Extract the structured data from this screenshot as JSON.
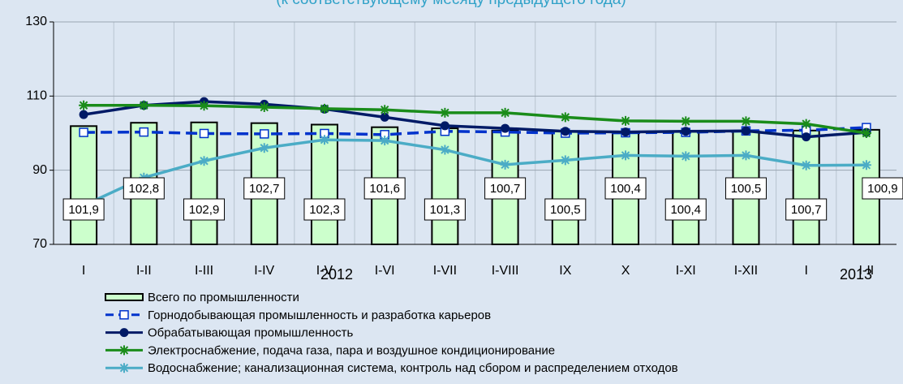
{
  "chart_data": {
    "type": "bar_line",
    "subtitle": "(к соответствующему месяцу предыдущего года)",
    "categories": [
      "I",
      "I-II",
      "I-III",
      "I-IV",
      "I-V",
      "I-VI",
      "I-VII",
      "I-VIII",
      "IX",
      "X",
      "I-XI",
      "I-XII",
      "I",
      "I-II"
    ],
    "group_labels": [
      "2012",
      "2013"
    ],
    "ylim": [
      70,
      130
    ],
    "yticks": [
      70,
      90,
      110,
      130
    ],
    "grid": true,
    "series": [
      {
        "name": "Всего по промышленности",
        "type": "bar",
        "color": "#ccffcc",
        "values": [
          101.9,
          102.8,
          102.9,
          102.7,
          102.3,
          101.6,
          101.3,
          100.7,
          100.5,
          100.4,
          100.4,
          100.5,
          100.7,
          100.9
        ],
        "value_labels": [
          "101,9",
          "102,8",
          "102,9",
          "102,7",
          "102,3",
          "101,6",
          "101,3",
          "100,7",
          "100,5",
          "100,4",
          "100,4",
          "100,5",
          "100,7",
          "100,9"
        ]
      },
      {
        "name": "Горнодобывающая промышленность и разработка карьеров",
        "type": "line",
        "color": "#0033cc",
        "marker": "square",
        "dashed": true,
        "values": [
          100.2,
          100.3,
          99.9,
          99.8,
          99.9,
          99.6,
          100.5,
          100.3,
          100.0,
          100.1,
          100.2,
          100.6,
          100.8,
          101.5
        ]
      },
      {
        "name": "Обрабатывающая промышленность",
        "type": "line",
        "color": "#001a66",
        "marker": "circle",
        "values": [
          105.0,
          107.5,
          108.5,
          107.8,
          106.5,
          104.3,
          102.0,
          101.3,
          100.5,
          100.3,
          100.5,
          100.6,
          99.0,
          100.2
        ]
      },
      {
        "name": "Электроснабжение, подача газа, пара и воздушное кондиционирование",
        "type": "line",
        "color": "#1a8c1a",
        "marker": "star",
        "values": [
          107.5,
          107.5,
          107.4,
          107.0,
          106.6,
          106.3,
          105.5,
          105.5,
          104.3,
          103.3,
          103.2,
          103.2,
          102.5,
          100.0
        ]
      },
      {
        "name": "Водоснабжение; канализационная система, контроль над сбором и распределением отходов",
        "type": "line",
        "color": "#4bacc6",
        "marker": "star",
        "values": [
          80.5,
          88.0,
          92.5,
          96.0,
          98.2,
          98.0,
          95.5,
          91.5,
          92.7,
          94.0,
          93.8,
          94.0,
          91.3,
          91.4
        ]
      }
    ]
  }
}
